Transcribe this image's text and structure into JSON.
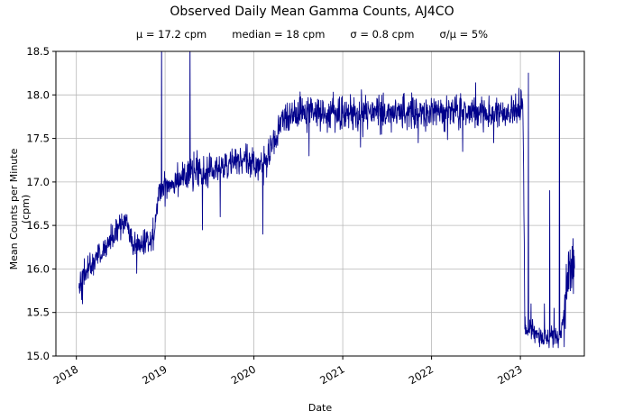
{
  "title": "Observed Daily Mean Gamma Counts, AJ4CO",
  "stats": {
    "mu": "μ = 17.2 cpm",
    "median": "median = 18 cpm",
    "sigma": "σ = 0.8 cpm",
    "ratio": "σ/μ = 5%"
  },
  "chart_data": {
    "type": "line",
    "title": "Observed Daily Mean Gamma Counts, AJ4CO",
    "subtitle": "μ = 17.2 cpm   median = 18 cpm   σ = 0.8 cpm   σ/μ = 5%",
    "xlabel": "Date",
    "ylabel": "Mean Counts per Minute (cpm)",
    "x_ticks": [
      2018,
      2019,
      2020,
      2021,
      2022,
      2023
    ],
    "y_ticks": [
      15.0,
      15.5,
      16.0,
      16.5,
      17.0,
      17.5,
      18.0,
      18.5
    ],
    "xlim": [
      2017.77,
      2023.72
    ],
    "ylim": [
      15.0,
      18.5
    ],
    "grid": true,
    "grid_color": "#b8b8b8",
    "line_color": "#00008b",
    "legend": "none",
    "data_start": 2018.03,
    "data_end": 2023.61,
    "samples_per_year": 300,
    "seed": 42,
    "control_points": [
      [
        2018.03,
        15.85
      ],
      [
        2018.1,
        15.95
      ],
      [
        2018.2,
        16.1
      ],
      [
        2018.3,
        16.2
      ],
      [
        2018.4,
        16.35
      ],
      [
        2018.5,
        16.5
      ],
      [
        2018.56,
        16.55
      ],
      [
        2018.62,
        16.3
      ],
      [
        2018.72,
        16.25
      ],
      [
        2018.8,
        16.35
      ],
      [
        2018.88,
        16.4
      ],
      [
        2018.93,
        16.9
      ],
      [
        2019.0,
        16.95
      ],
      [
        2019.15,
        17.05
      ],
      [
        2019.35,
        17.1
      ],
      [
        2019.6,
        17.15
      ],
      [
        2019.85,
        17.25
      ],
      [
        2020.05,
        17.2
      ],
      [
        2020.15,
        17.25
      ],
      [
        2020.24,
        17.45
      ],
      [
        2020.3,
        17.7
      ],
      [
        2020.45,
        17.75
      ],
      [
        2020.7,
        17.8
      ],
      [
        2021.0,
        17.78
      ],
      [
        2021.5,
        17.8
      ],
      [
        2022.0,
        17.8
      ],
      [
        2022.5,
        17.8
      ],
      [
        2022.95,
        17.8
      ],
      [
        2023.03,
        17.9
      ],
      [
        2023.05,
        15.35
      ],
      [
        2023.15,
        15.25
      ],
      [
        2023.25,
        15.2
      ],
      [
        2023.35,
        15.25
      ],
      [
        2023.45,
        15.2
      ],
      [
        2023.5,
        15.6
      ],
      [
        2023.55,
        16.0
      ],
      [
        2023.61,
        16.1
      ]
    ],
    "noise_segments": [
      [
        2017.9,
        2018.93,
        0.075
      ],
      [
        2018.93,
        2020.24,
        0.09
      ],
      [
        2020.24,
        2023.04,
        0.1
      ],
      [
        2023.04,
        2023.49,
        0.06
      ],
      [
        2023.49,
        2023.62,
        0.18
      ]
    ],
    "spikes": [
      [
        2018.07,
        15.6
      ],
      [
        2018.68,
        15.95
      ],
      [
        2018.96,
        18.8
      ],
      [
        2019.28,
        18.8
      ],
      [
        2019.42,
        16.45
      ],
      [
        2019.62,
        16.6
      ],
      [
        2020.1,
        16.4
      ],
      [
        2020.62,
        17.3
      ],
      [
        2021.2,
        17.4
      ],
      [
        2021.85,
        17.45
      ],
      [
        2022.35,
        17.35
      ],
      [
        2022.7,
        17.45
      ],
      [
        2023.09,
        18.25
      ],
      [
        2023.12,
        15.6
      ],
      [
        2023.27,
        15.6
      ],
      [
        2023.33,
        16.9
      ],
      [
        2023.44,
        18.8
      ],
      [
        2023.38,
        15.55
      ]
    ]
  }
}
